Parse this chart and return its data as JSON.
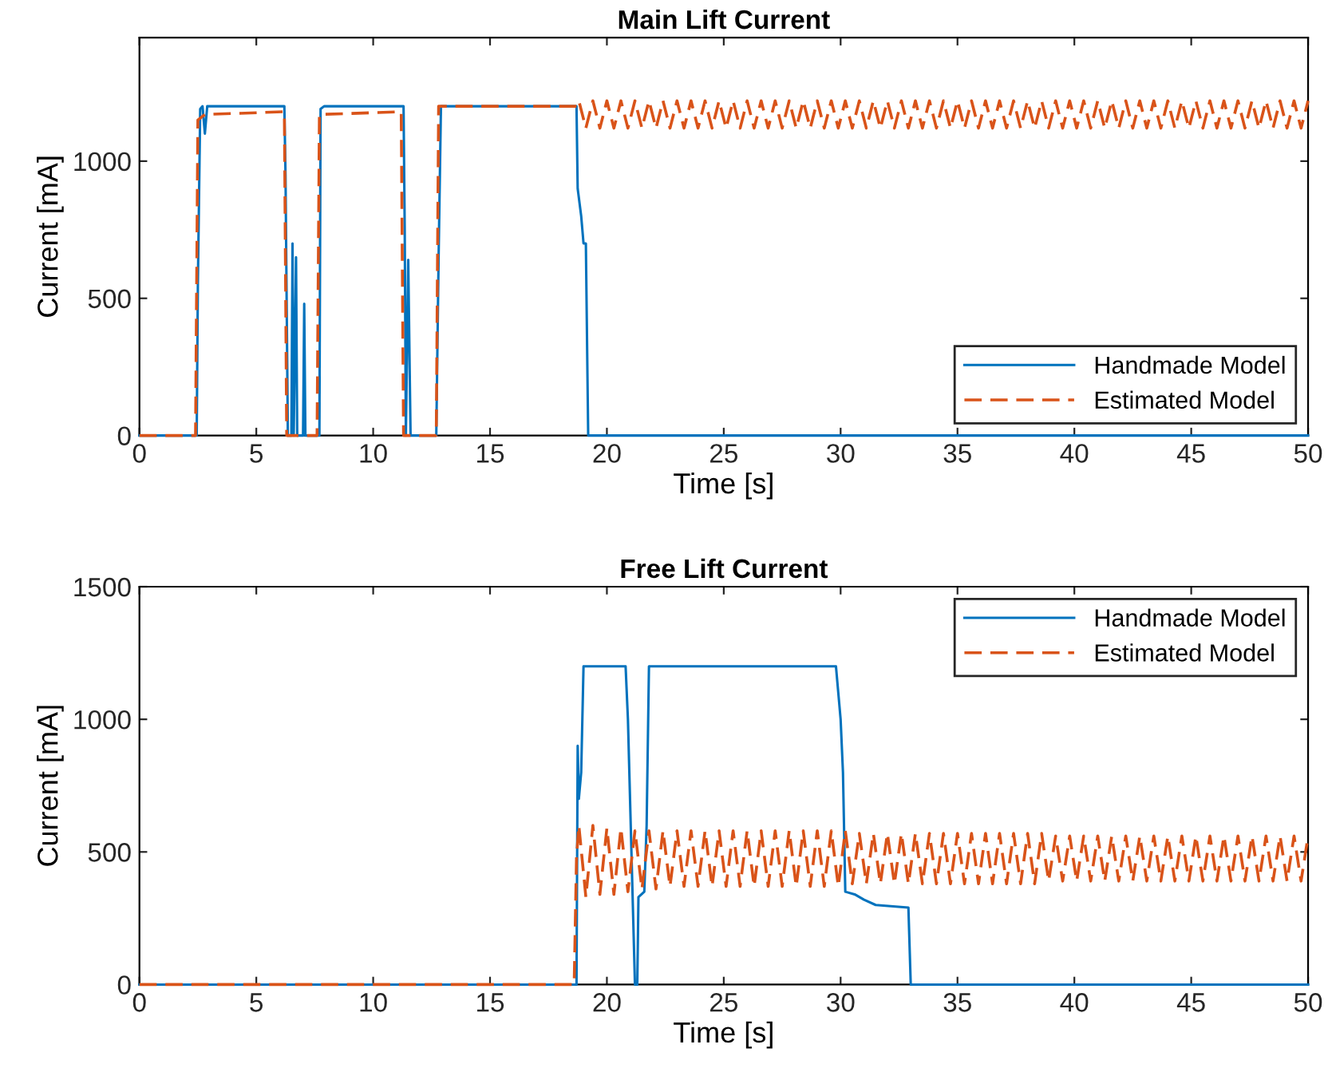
{
  "chart_data": [
    {
      "type": "line",
      "title": "Main Lift Current",
      "xlabel": "Time [s]",
      "ylabel": "Current [mA]",
      "xlim": [
        0,
        50
      ],
      "ylim": [
        0,
        1450
      ],
      "xticks": [
        0,
        5,
        10,
        15,
        20,
        25,
        30,
        35,
        40,
        45,
        50
      ],
      "yticks": [
        0,
        500,
        1000
      ],
      "grid": false,
      "legend": "bottom right",
      "series": [
        {
          "name": "Handmade Model",
          "color": "#0072bd",
          "line_style": "solid",
          "x": [
            0,
            2.45,
            2.5,
            2.6,
            2.7,
            2.8,
            2.9,
            6.2,
            6.25,
            6.35,
            6.5,
            6.55,
            6.6,
            6.7,
            6.75,
            7.0,
            7.05,
            7.1,
            7.7,
            7.75,
            7.9,
            11.3,
            11.35,
            11.4,
            11.5,
            11.6,
            12.7,
            12.8,
            12.9,
            18.7,
            18.75,
            18.9,
            19.0,
            19.1,
            19.2,
            50
          ],
          "values": [
            0,
            0,
            550,
            1190,
            1200,
            1100,
            1200,
            1200,
            950,
            0,
            0,
            700,
            0,
            650,
            0,
            0,
            480,
            0,
            0,
            1190,
            1200,
            1200,
            750,
            0,
            640,
            0,
            0,
            650,
            1200,
            1200,
            900,
            800,
            700,
            700,
            0,
            0
          ]
        },
        {
          "name": "Estimated Model",
          "color": "#d95319",
          "line_style": "dashed",
          "x": [
            0,
            2.4,
            2.5,
            2.8,
            6.2,
            6.3,
            7.6,
            7.7,
            11.2,
            11.3,
            12.7,
            12.8,
            18.7,
            18.8,
            19.1,
            19.4,
            19.7,
            20.0,
            20.3,
            20.6,
            20.9,
            21.2,
            21.5,
            21.8,
            22.1,
            22.4,
            22.7,
            23.0,
            23.3,
            23.6,
            23.9,
            24.2,
            24.5,
            24.8,
            25.1,
            25.4,
            25.7,
            26.0,
            26.3,
            26.6,
            26.9,
            27.2,
            27.5,
            27.8,
            28.1,
            28.4,
            28.7,
            29.0,
            29.3,
            29.6,
            29.9,
            30.2,
            30.5,
            30.8,
            31.1,
            31.4,
            31.7,
            32.0,
            32.3,
            32.6,
            32.9,
            33.2,
            33.5,
            33.8,
            34.1,
            34.4,
            34.7,
            35.0,
            35.3,
            35.6,
            35.9,
            36.2,
            36.5,
            36.8,
            37.1,
            37.4,
            37.7,
            38.0,
            38.3,
            38.6,
            38.9,
            39.2,
            39.5,
            39.8,
            40.1,
            40.4,
            40.7,
            41.0,
            41.3,
            41.6,
            41.9,
            42.2,
            42.5,
            42.8,
            43.1,
            43.4,
            43.7,
            44.0,
            44.3,
            44.6,
            44.9,
            45.2,
            45.5,
            45.8,
            46.1,
            46.4,
            46.7,
            47.0,
            47.3,
            47.6,
            47.9,
            48.2,
            48.5,
            48.8,
            49.1,
            49.4,
            49.7,
            50.0
          ],
          "values": [
            0,
            0,
            1150,
            1170,
            1180,
            0,
            0,
            1170,
            1180,
            0,
            0,
            1200,
            1200,
            1220,
            1120,
            1220,
            1120,
            1220,
            1120,
            1220,
            1120,
            1220,
            1120,
            1220,
            1120,
            1220,
            1120,
            1220,
            1120,
            1220,
            1120,
            1220,
            1120,
            1220,
            1120,
            1220,
            1120,
            1220,
            1120,
            1220,
            1120,
            1220,
            1120,
            1220,
            1120,
            1220,
            1120,
            1220,
            1120,
            1220,
            1120,
            1220,
            1120,
            1220,
            1120,
            1220,
            1120,
            1220,
            1120,
            1220,
            1120,
            1220,
            1120,
            1220,
            1120,
            1220,
            1120,
            1220,
            1120,
            1220,
            1120,
            1220,
            1120,
            1220,
            1120,
            1220,
            1120,
            1220,
            1120,
            1220,
            1120,
            1220,
            1120,
            1220,
            1120,
            1220,
            1120,
            1220,
            1120,
            1220,
            1120,
            1220,
            1120,
            1220,
            1120,
            1220,
            1120,
            1220,
            1120,
            1220,
            1120,
            1220,
            1120,
            1220,
            1120,
            1220,
            1120,
            1220,
            1120,
            1220,
            1120,
            1220,
            1120,
            1220,
            1120,
            1220,
            1120,
            1220
          ]
        }
      ]
    },
    {
      "type": "line",
      "title": "Free Lift Current",
      "xlabel": "Time [s]",
      "ylabel": "Current [mA]",
      "xlim": [
        0,
        50
      ],
      "ylim": [
        0,
        1500
      ],
      "xticks": [
        0,
        5,
        10,
        15,
        20,
        25,
        30,
        35,
        40,
        45,
        50
      ],
      "yticks": [
        0,
        500,
        1000,
        1500
      ],
      "grid": false,
      "legend": "top right",
      "series": [
        {
          "name": "Handmade Model",
          "color": "#0072bd",
          "line_style": "solid",
          "x": [
            0,
            18.7,
            18.75,
            18.8,
            18.9,
            19.0,
            20.8,
            20.9,
            21.2,
            21.3,
            21.35,
            21.6,
            21.7,
            21.8,
            29.8,
            30.0,
            30.1,
            30.2,
            30.6,
            31.0,
            31.5,
            32.9,
            33.0,
            50
          ],
          "values": [
            0,
            0,
            900,
            700,
            800,
            1200,
            1200,
            1000,
            0,
            0,
            330,
            350,
            600,
            1200,
            1200,
            1000,
            800,
            350,
            340,
            320,
            300,
            290,
            0,
            0
          ]
        },
        {
          "name": "Estimated Model",
          "color": "#d95319",
          "line_style": "dashed",
          "x": [
            0,
            18.6,
            18.7,
            18.8,
            19.1,
            19.4,
            19.7,
            20.0,
            20.3,
            20.6,
            20.9,
            21.2,
            21.5,
            21.8,
            22.1,
            22.4,
            22.7,
            23.0,
            23.3,
            23.6,
            23.9,
            24.2,
            24.5,
            24.8,
            25.1,
            25.4,
            25.7,
            26.0,
            26.3,
            26.6,
            26.9,
            27.2,
            27.5,
            27.8,
            28.1,
            28.4,
            28.7,
            29.0,
            29.3,
            29.6,
            29.9,
            30.2,
            30.5,
            30.8,
            31.1,
            31.4,
            31.7,
            32.0,
            32.3,
            32.6,
            32.9,
            33.2,
            33.5,
            33.8,
            34.1,
            34.4,
            34.7,
            35.0,
            35.3,
            35.6,
            35.9,
            36.2,
            36.5,
            36.8,
            37.1,
            37.4,
            37.7,
            38.0,
            38.3,
            38.6,
            38.9,
            39.2,
            39.5,
            39.8,
            40.1,
            40.4,
            40.7,
            41.0,
            41.3,
            41.6,
            41.9,
            42.2,
            42.5,
            42.8,
            43.1,
            43.4,
            43.7,
            44.0,
            44.3,
            44.6,
            44.9,
            45.2,
            45.5,
            45.8,
            46.1,
            46.4,
            46.7,
            47.0,
            47.3,
            47.6,
            47.9,
            48.2,
            48.5,
            48.8,
            49.1,
            49.4,
            49.7,
            50.0
          ],
          "values": [
            0,
            0,
            480,
            600,
            330,
            600,
            340,
            590,
            340,
            590,
            350,
            580,
            360,
            580,
            360,
            580,
            370,
            580,
            370,
            580,
            370,
            580,
            370,
            580,
            370,
            580,
            370,
            580,
            370,
            580,
            370,
            580,
            370,
            580,
            370,
            580,
            370,
            580,
            370,
            580,
            370,
            580,
            380,
            570,
            380,
            570,
            380,
            570,
            380,
            570,
            380,
            570,
            380,
            570,
            380,
            570,
            380,
            570,
            380,
            570,
            380,
            570,
            380,
            570,
            380,
            570,
            380,
            570,
            380,
            570,
            390,
            560,
            390,
            560,
            390,
            560,
            390,
            560,
            390,
            560,
            390,
            560,
            390,
            560,
            390,
            560,
            390,
            560,
            390,
            560,
            390,
            560,
            390,
            560,
            390,
            560,
            390,
            560,
            390,
            560,
            390,
            560,
            390,
            560,
            390,
            560,
            390,
            560
          ]
        }
      ]
    }
  ]
}
